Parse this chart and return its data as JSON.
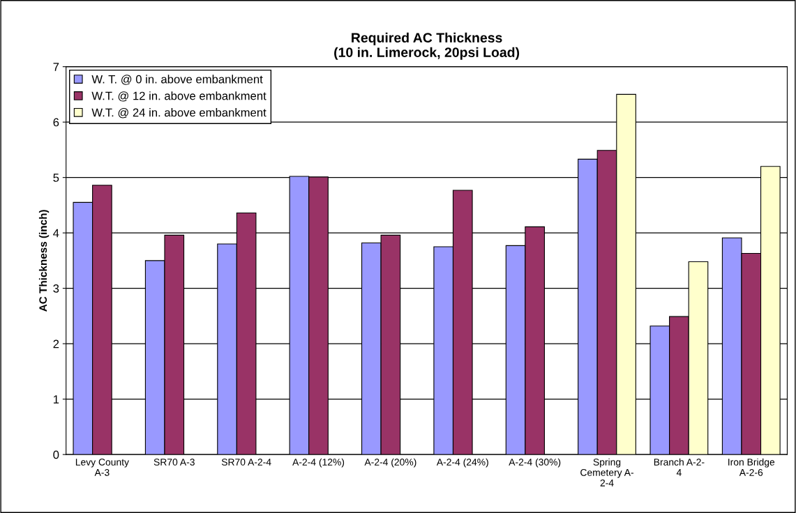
{
  "chart_data": {
    "type": "bar",
    "title": "Required AC Thickness\n(10 in. Limerock, 20psi Load)",
    "ylabel": "AC Thickness (inch)",
    "categories": [
      "Levy County\nA-3",
      "SR70 A-3",
      "SR70 A-2-4",
      "A-2-4 (12%)",
      "A-2-4 (20%)",
      "A-2-4 (24%)",
      "A-2-4 (30%)",
      "Spring\nCemetery A-\n2-4",
      "Branch A-2-\n4",
      "Iron Bridge\nA-2-6"
    ],
    "series": [
      {
        "name": "W. T. @ 0 in. above embankment",
        "color": "#9999ff",
        "values": [
          4.55,
          3.5,
          3.8,
          5.02,
          3.82,
          3.75,
          3.77,
          5.33,
          2.32,
          3.91
        ]
      },
      {
        "name": "W.T. @ 12 in. above embankment",
        "color": "#993366",
        "values": [
          4.86,
          3.96,
          4.36,
          5.01,
          3.96,
          4.77,
          4.11,
          5.49,
          2.49,
          3.63
        ]
      },
      {
        "name": "W.T. @ 24 in. above embankment",
        "color": "#ffffcc",
        "values": [
          null,
          null,
          null,
          null,
          null,
          null,
          null,
          6.5,
          3.48,
          5.2
        ]
      }
    ],
    "ylim": [
      0,
      7
    ],
    "yticks": [
      0,
      1,
      2,
      3,
      4,
      5,
      6,
      7
    ],
    "grid": "y",
    "legend": "top left"
  }
}
